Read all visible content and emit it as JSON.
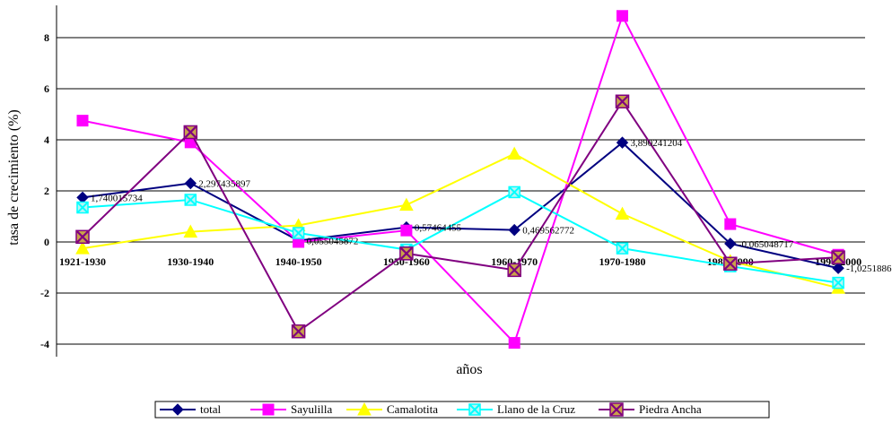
{
  "chart_data": {
    "type": "line",
    "title": "",
    "xlabel": "años",
    "ylabel": "tasa de crecimiento (%)",
    "ylim": [
      -4,
      9
    ],
    "yticks": [
      -4,
      -2,
      0,
      2,
      4,
      6,
      8
    ],
    "grid": "horizontal",
    "legend_position": "bottom",
    "categories": [
      "1921-1930",
      "1930-1940",
      "1940-1950",
      "1950-1960",
      "1960-1970",
      "1970-1980",
      "1980-1990",
      "1990-2000"
    ],
    "series": [
      {
        "name": "total",
        "color": "#000080",
        "marker": "diamond",
        "values": [
          1.740015734,
          2.297435897,
          0.055045872,
          0.57464455,
          0.469562772,
          3.890241204,
          -0.065048717,
          -1.0251886
        ],
        "labels": [
          "1,740015734",
          "2,297435897",
          "0,055045872",
          "0,57464455",
          "0,469562772",
          "3,890241204",
          "-0,065048717",
          "-1,0251886"
        ]
      },
      {
        "name": "Sayulilla",
        "color": "#ff00ff",
        "marker": "square",
        "values": [
          4.75,
          3.9,
          0.0,
          0.45,
          -3.95,
          8.85,
          0.7,
          -0.5
        ]
      },
      {
        "name": "Camalotita",
        "color": "#ffff00",
        "marker": "triangle",
        "values": [
          -0.25,
          0.4,
          0.65,
          1.45,
          3.45,
          1.1,
          -0.75,
          -1.8
        ]
      },
      {
        "name": "Llano de la Cruz",
        "color": "#00ffff",
        "marker": "xsquare",
        "values": [
          1.35,
          1.65,
          0.35,
          -0.3,
          1.95,
          -0.25,
          -0.95,
          -1.6
        ]
      },
      {
        "name": "Piedra Ancha",
        "color": "#800080",
        "marker": "xsquare-dark",
        "values": [
          0.2,
          4.3,
          -3.5,
          -0.45,
          -1.1,
          5.5,
          -0.85,
          -0.6
        ]
      }
    ]
  }
}
